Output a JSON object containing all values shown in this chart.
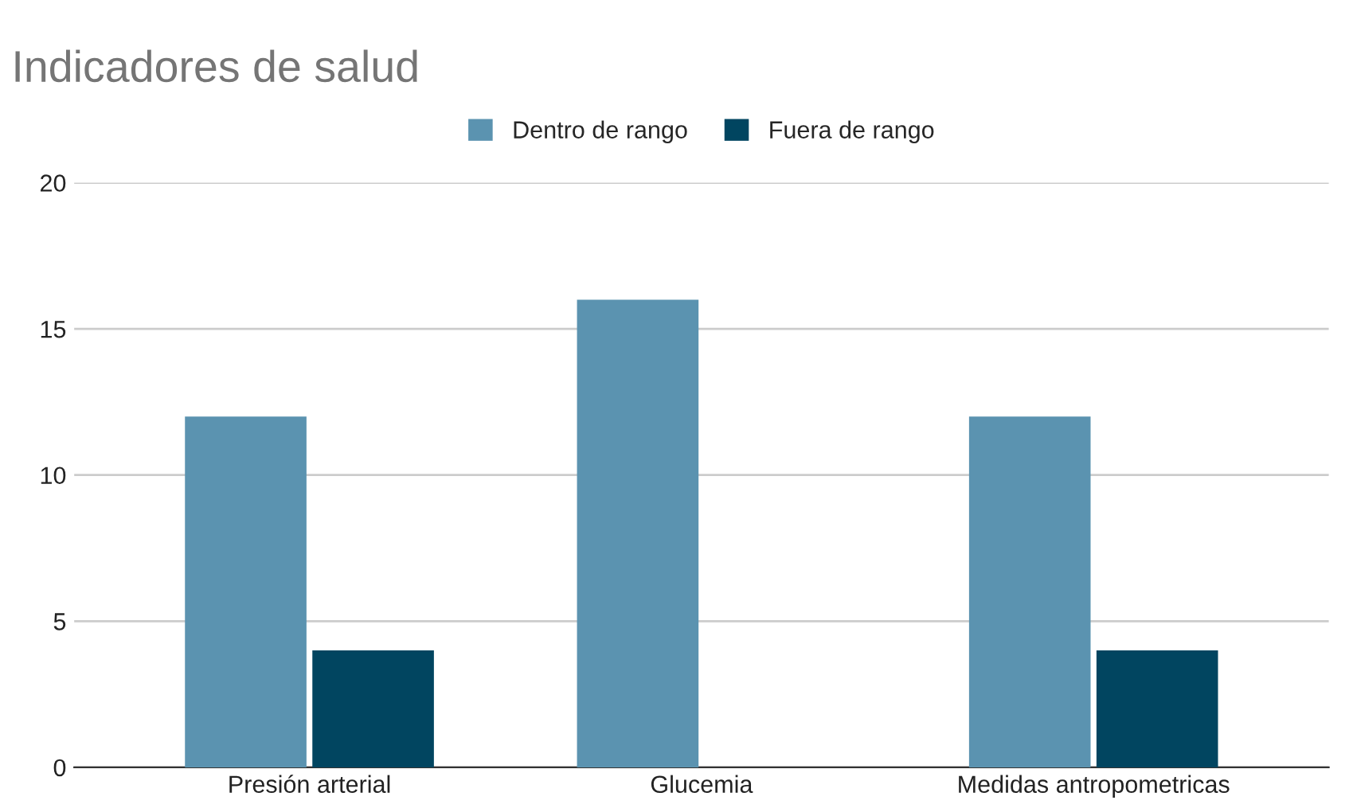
{
  "chart_data": {
    "type": "bar",
    "title": "Indicadores de salud",
    "categories": [
      "Presión arterial",
      "Glucemia",
      "Medidas antropometricas"
    ],
    "series": [
      {
        "name": "Dentro de rango",
        "color": "#5b93b0",
        "values": [
          12,
          16,
          12
        ]
      },
      {
        "name": "Fuera de rango",
        "color": "#014560",
        "values": [
          4,
          null,
          4
        ]
      }
    ],
    "ylim": [
      0,
      20
    ],
    "yticks": [
      0,
      5,
      10,
      15,
      20
    ],
    "grid": "y",
    "legend": "top"
  }
}
